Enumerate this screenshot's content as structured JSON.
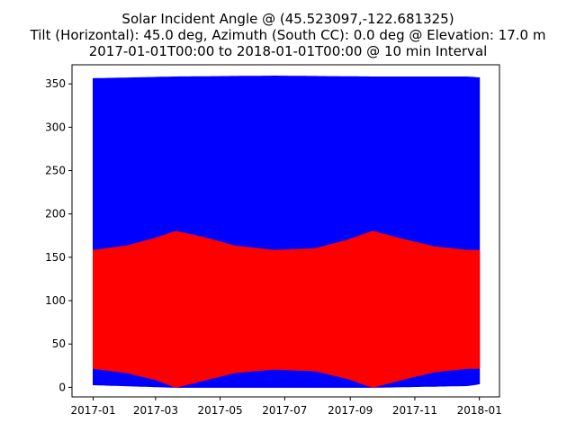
{
  "chart_data": {
    "type": "area",
    "title_lines": [
      "Solar Incident Angle @ (45.523097,-122.681325)",
      "Tilt (Horizontal): 45.0 deg, Azimuth (South CC): 0.0 deg @ Elevation: 17.0 m",
      "2017-01-01T00:00 to 2018-01-01T00:00 @ 10 min Interval"
    ],
    "xlabel": "",
    "ylabel": "",
    "x_ticks": [
      "2017-01",
      "2017-03",
      "2017-05",
      "2017-07",
      "2017-09",
      "2017-11",
      "2018-01"
    ],
    "x_range": [
      "2017-01-01",
      "2018-01-01"
    ],
    "xlim": [
      "2016-12-12",
      "2018-01-20"
    ],
    "y_ticks": [
      0,
      50,
      100,
      150,
      200,
      250,
      300,
      350
    ],
    "ylim": [
      -11,
      372
    ],
    "grid": false,
    "legend": "none",
    "series": [
      {
        "color": "#0000ff",
        "envelope": {
          "dates": [
            "2017-01-01",
            "2017-03-20",
            "2017-06-21",
            "2017-09-22",
            "2017-12-21",
            "2018-01-01"
          ],
          "lower": [
            3,
            0,
            0,
            0,
            2,
            4
          ],
          "upper": [
            356,
            358,
            359,
            358,
            358,
            357
          ]
        }
      },
      {
        "color": "#ff0000",
        "envelope": {
          "dates": [
            "2017-01-01",
            "2017-02-01",
            "2017-03-01",
            "2017-03-20",
            "2017-04-15",
            "2017-05-15",
            "2017-06-21",
            "2017-07-30",
            "2017-08-30",
            "2017-09-22",
            "2017-10-20",
            "2017-11-20",
            "2017-12-21",
            "2018-01-01"
          ],
          "lower": [
            22,
            17,
            9,
            0,
            8,
            17,
            21,
            19,
            10,
            0,
            9,
            18,
            22,
            22
          ],
          "upper": [
            158,
            163,
            172,
            180,
            173,
            163,
            158,
            160,
            170,
            180,
            171,
            162,
            158,
            158
          ]
        }
      }
    ]
  }
}
